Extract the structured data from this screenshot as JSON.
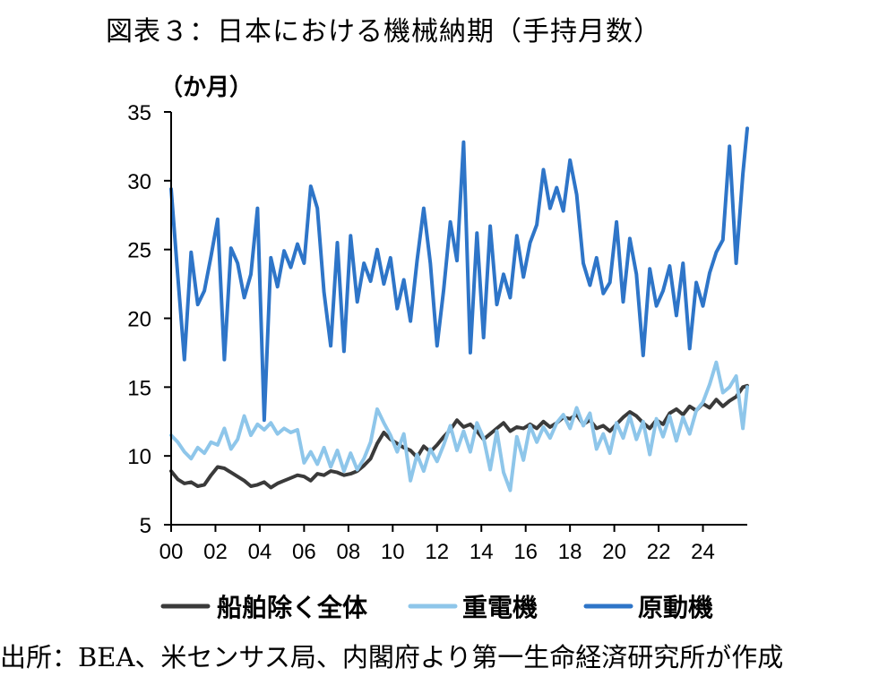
{
  "page": {
    "title": "図表３：日本における機械納期（手持月数）",
    "source": "出所：BEA、米センサス局、内閣府より第一生命経済研究所が作成"
  },
  "chart_data": {
    "type": "line",
    "title": "図表３：日本における機械納期（手持月数）",
    "ylabel": "（か月）",
    "xlabel": "",
    "ylim": [
      5,
      35
    ],
    "xlim": [
      0,
      26
    ],
    "yticks": [
      5,
      10,
      15,
      20,
      25,
      30,
      35
    ],
    "xticks": [
      0,
      2,
      4,
      6,
      8,
      10,
      12,
      14,
      16,
      18,
      20,
      22,
      24
    ],
    "xtick_labels": [
      "00",
      "02",
      "04",
      "06",
      "08",
      "10",
      "12",
      "14",
      "16",
      "18",
      "20",
      "22",
      "24"
    ],
    "legend_position": "bottom",
    "series": [
      {
        "name": "船舶除く全体",
        "color": "#3a3a3a",
        "x": [
          0,
          0.3,
          0.6,
          0.9,
          1.2,
          1.5,
          1.8,
          2.1,
          2.4,
          2.7,
          3.0,
          3.3,
          3.6,
          3.9,
          4.2,
          4.5,
          4.8,
          5.1,
          5.4,
          5.7,
          6.0,
          6.3,
          6.6,
          6.9,
          7.2,
          7.5,
          7.8,
          8.1,
          8.4,
          8.7,
          9.0,
          9.3,
          9.6,
          9.9,
          10.2,
          10.5,
          10.8,
          11.1,
          11.4,
          11.7,
          12.0,
          12.3,
          12.6,
          12.9,
          13.2,
          13.5,
          13.8,
          14.1,
          14.4,
          14.7,
          15.0,
          15.3,
          15.6,
          15.9,
          16.2,
          16.5,
          16.8,
          17.1,
          17.4,
          17.7,
          18.0,
          18.3,
          18.6,
          18.9,
          19.2,
          19.5,
          19.8,
          20.1,
          20.4,
          20.7,
          21.0,
          21.3,
          21.6,
          21.9,
          22.2,
          22.5,
          22.8,
          23.1,
          23.4,
          23.7,
          24.0,
          24.3,
          24.6,
          24.9,
          25.2,
          25.5,
          25.8,
          26.0
        ],
        "values": [
          8.9,
          8.3,
          8.0,
          8.1,
          7.8,
          7.9,
          8.6,
          9.2,
          9.1,
          8.8,
          8.5,
          8.2,
          7.8,
          7.9,
          8.1,
          7.7,
          8.0,
          8.2,
          8.4,
          8.6,
          8.5,
          8.2,
          8.7,
          8.6,
          8.9,
          8.8,
          8.6,
          8.7,
          8.9,
          9.3,
          9.8,
          10.9,
          11.7,
          11.2,
          10.9,
          10.6,
          10.4,
          9.9,
          10.7,
          10.3,
          10.8,
          11.4,
          11.9,
          12.6,
          12.1,
          12.3,
          11.8,
          11.2,
          11.6,
          12.0,
          12.4,
          11.8,
          12.1,
          12.0,
          12.3,
          12.0,
          12.5,
          12.1,
          12.4,
          12.8,
          12.7,
          13.0,
          12.3,
          12.6,
          12.0,
          12.2,
          11.8,
          12.3,
          12.8,
          13.2,
          12.9,
          12.4,
          12.0,
          12.6,
          12.3,
          13.1,
          13.4,
          13.0,
          13.6,
          13.3,
          13.8,
          13.5,
          14.1,
          13.6,
          14.0,
          14.3,
          15.0,
          15.1
        ]
      },
      {
        "name": "重電機",
        "color": "#8ec6ea",
        "x": [
          0,
          0.3,
          0.6,
          0.9,
          1.2,
          1.5,
          1.8,
          2.1,
          2.4,
          2.7,
          3.0,
          3.3,
          3.6,
          3.9,
          4.2,
          4.5,
          4.8,
          5.1,
          5.4,
          5.7,
          6.0,
          6.3,
          6.6,
          6.9,
          7.2,
          7.5,
          7.8,
          8.1,
          8.4,
          8.7,
          9.0,
          9.3,
          9.6,
          9.9,
          10.2,
          10.5,
          10.8,
          11.1,
          11.4,
          11.7,
          12.0,
          12.3,
          12.6,
          12.9,
          13.2,
          13.5,
          13.8,
          14.1,
          14.4,
          14.7,
          15.0,
          15.3,
          15.6,
          15.9,
          16.2,
          16.5,
          16.8,
          17.1,
          17.4,
          17.7,
          18.0,
          18.3,
          18.6,
          18.9,
          19.2,
          19.5,
          19.8,
          20.1,
          20.4,
          20.7,
          21.0,
          21.3,
          21.6,
          21.9,
          22.2,
          22.5,
          22.8,
          23.1,
          23.4,
          23.7,
          24.0,
          24.3,
          24.6,
          24.9,
          25.2,
          25.5,
          25.8,
          26.0
        ],
        "values": [
          11.5,
          11.0,
          10.3,
          9.8,
          10.6,
          10.2,
          11.0,
          10.8,
          12.0,
          10.5,
          11.2,
          12.9,
          11.5,
          12.3,
          11.9,
          12.4,
          11.6,
          12.0,
          11.7,
          11.9,
          9.5,
          10.3,
          9.4,
          10.6,
          9.2,
          10.4,
          8.9,
          10.2,
          9.0,
          9.8,
          11.0,
          13.4,
          12.4,
          11.5,
          10.3,
          11.6,
          8.2,
          10.1,
          8.9,
          10.5,
          9.6,
          10.8,
          12.2,
          10.4,
          11.8,
          10.3,
          12.4,
          11.3,
          9.0,
          11.8,
          8.8,
          7.5,
          11.4,
          9.7,
          12.2,
          11.0,
          12.1,
          11.3,
          12.4,
          13.0,
          12.0,
          13.5,
          12.2,
          13.1,
          10.5,
          11.6,
          10.2,
          12.4,
          11.3,
          12.9,
          11.2,
          12.5,
          10.1,
          12.7,
          11.4,
          12.9,
          11.1,
          12.8,
          11.6,
          13.3,
          13.9,
          15.2,
          16.8,
          14.6,
          15.0,
          15.8,
          12.0,
          15.0
        ]
      },
      {
        "name": "原動機",
        "color": "#2e75c8",
        "x": [
          0,
          0.3,
          0.6,
          0.9,
          1.2,
          1.5,
          1.8,
          2.1,
          2.4,
          2.7,
          3.0,
          3.3,
          3.6,
          3.9,
          4.2,
          4.5,
          4.8,
          5.1,
          5.4,
          5.7,
          6.0,
          6.3,
          6.6,
          6.9,
          7.2,
          7.5,
          7.8,
          8.1,
          8.4,
          8.7,
          9.0,
          9.3,
          9.6,
          9.9,
          10.2,
          10.5,
          10.8,
          11.1,
          11.4,
          11.7,
          12.0,
          12.3,
          12.6,
          12.9,
          13.2,
          13.5,
          13.8,
          14.1,
          14.4,
          14.7,
          15.0,
          15.3,
          15.6,
          15.9,
          16.2,
          16.5,
          16.8,
          17.1,
          17.4,
          17.7,
          18.0,
          18.3,
          18.6,
          18.9,
          19.2,
          19.5,
          19.8,
          20.1,
          20.4,
          20.7,
          21.0,
          21.3,
          21.6,
          21.9,
          22.2,
          22.5,
          22.8,
          23.1,
          23.4,
          23.7,
          24.0,
          24.3,
          24.6,
          24.9,
          25.2,
          25.5,
          25.8,
          26.0
        ],
        "values": [
          29.4,
          23.1,
          17.0,
          24.8,
          21.0,
          22.0,
          24.5,
          27.2,
          17.0,
          25.1,
          24.0,
          21.5,
          23.2,
          28.0,
          12.6,
          24.4,
          22.3,
          24.9,
          23.7,
          25.4,
          24.0,
          29.6,
          28.0,
          21.9,
          18.0,
          25.5,
          17.6,
          26.0,
          21.2,
          24.0,
          22.7,
          25.0,
          22.5,
          24.4,
          20.7,
          22.8,
          19.8,
          24.2,
          28.0,
          24.0,
          18.0,
          22.1,
          27.0,
          24.2,
          32.8,
          17.5,
          26.2,
          18.6,
          26.7,
          21.0,
          23.2,
          21.5,
          26.0,
          23.0,
          25.5,
          26.8,
          30.8,
          28.0,
          29.5,
          27.8,
          31.5,
          29.0,
          24.0,
          22.4,
          24.4,
          21.8,
          22.6,
          27.0,
          21.2,
          25.8,
          23.2,
          17.3,
          23.6,
          20.9,
          22.0,
          23.8,
          20.2,
          24.0,
          17.8,
          22.6,
          20.9,
          23.3,
          24.8,
          25.7,
          32.5,
          24.0,
          30.5,
          33.8
        ]
      }
    ]
  }
}
